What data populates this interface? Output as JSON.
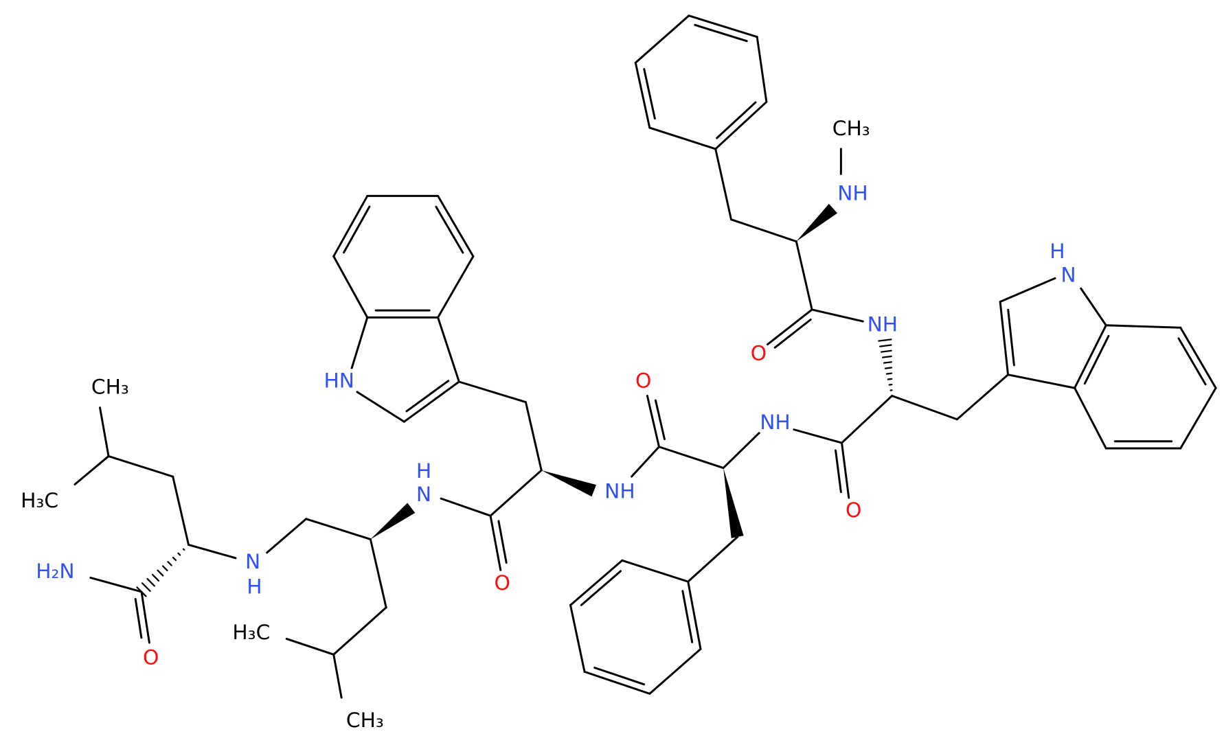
{
  "atom_labels": [
    "CH₃",
    "NH",
    "O",
    "NH",
    "H",
    "N",
    "O",
    "NH",
    "O",
    "NH",
    "O",
    "H",
    "N",
    "HN",
    "N",
    "H",
    "H₃C",
    "CH₃",
    "CH₃",
    "H₃C",
    "H₂N",
    "O"
  ]
}
